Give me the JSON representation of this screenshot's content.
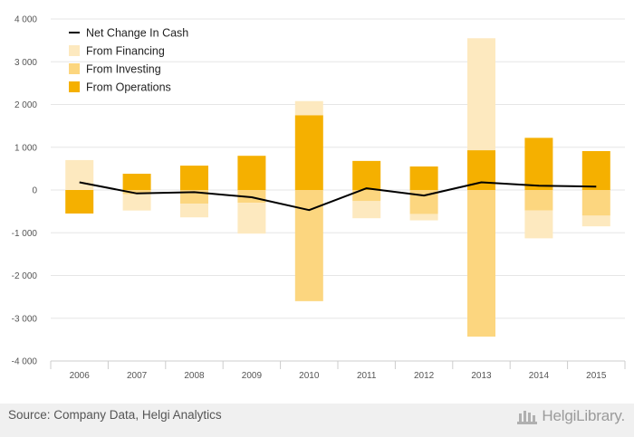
{
  "chart_data": {
    "type": "bar",
    "stacked": true,
    "categories": [
      "2006",
      "2007",
      "2008",
      "2009",
      "2010",
      "2011",
      "2012",
      "2013",
      "2014",
      "2015"
    ],
    "series": [
      {
        "name": "From Operations",
        "kind": "bar",
        "color": "#f5b000",
        "values": [
          -550,
          380,
          570,
          800,
          1750,
          680,
          550,
          930,
          1220,
          910
        ]
      },
      {
        "name": "From Investing",
        "kind": "bar",
        "color": "#fcd67f",
        "values": [
          0,
          -100,
          -320,
          -300,
          -2600,
          -260,
          -560,
          -3430,
          -480,
          -600
        ]
      },
      {
        "name": "From Financing",
        "kind": "bar",
        "color": "#fde9bf",
        "values": [
          700,
          -380,
          -320,
          -720,
          330,
          -400,
          -150,
          2620,
          -650,
          -250
        ]
      },
      {
        "name": "Net Change In Cash",
        "kind": "line",
        "color": "#000000",
        "values": [
          180,
          -80,
          -50,
          -170,
          -470,
          40,
          -130,
          180,
          100,
          80
        ]
      }
    ],
    "ylim": [
      -4000,
      4000
    ],
    "yticks": [
      4000,
      3000,
      2000,
      1000,
      0,
      -1000,
      -2000,
      -3000,
      -4000
    ],
    "ytick_labels": [
      "4 000",
      "3 000",
      "2 000",
      "1 000",
      "0",
      "-1 000",
      "-2 000",
      "-3 000",
      "-4 000"
    ],
    "grid": true,
    "legend_position": "top-left",
    "legend_order": [
      "Net Change In Cash",
      "From Financing",
      "From Investing",
      "From Operations"
    ]
  },
  "footer": {
    "source": "Source: Company Data, Helgi Analytics",
    "brand": "HelgiLibrary."
  }
}
